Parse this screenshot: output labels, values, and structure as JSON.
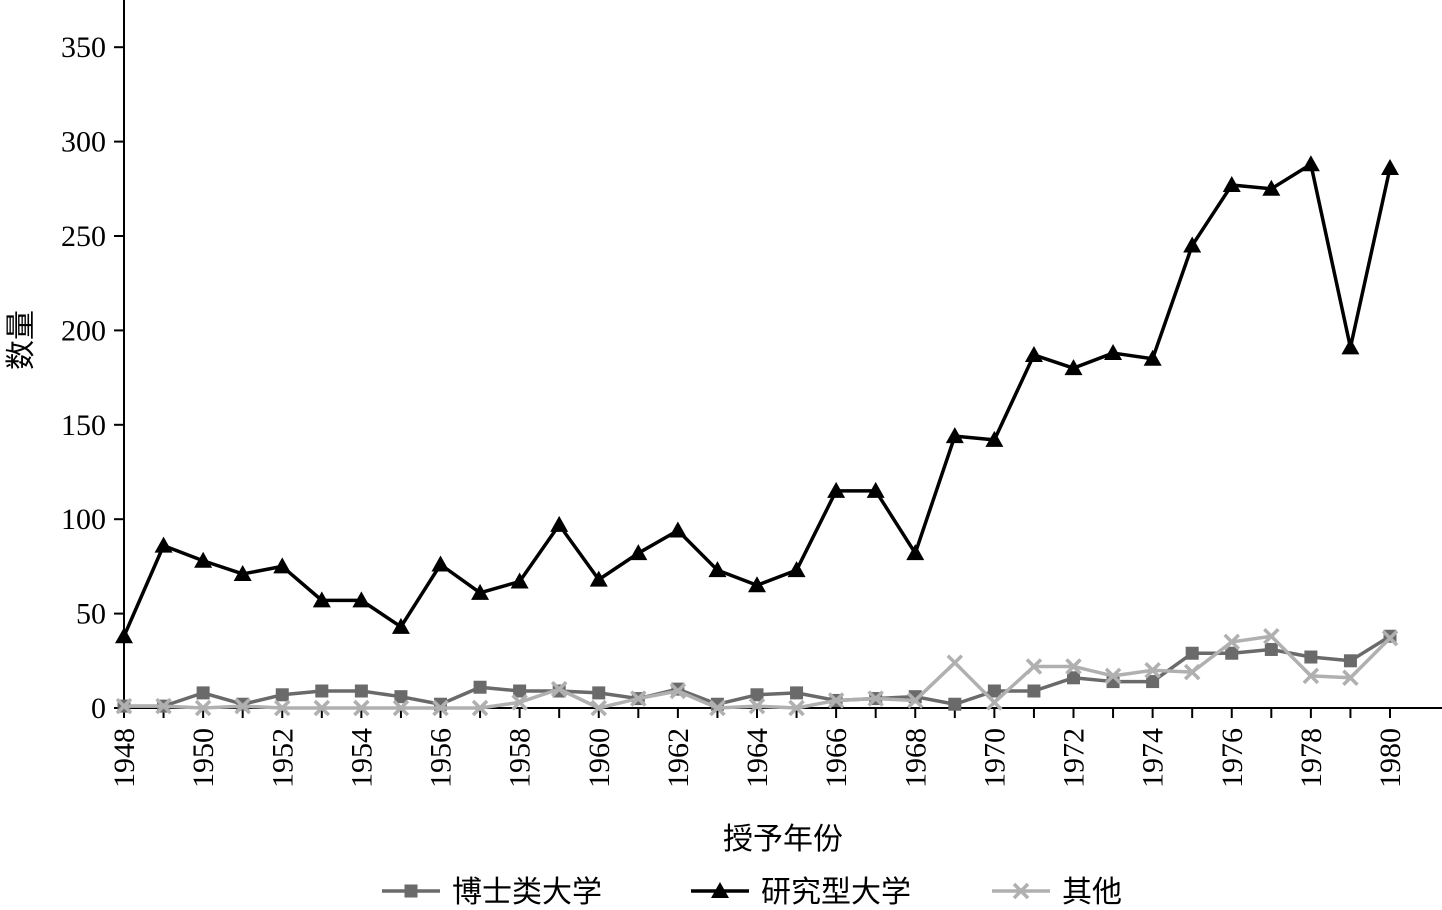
{
  "chart_data": {
    "type": "line",
    "title": "",
    "xlabel": "授予年份",
    "ylabel": "数量",
    "ylim": [
      0,
      375
    ],
    "yticks": [
      0,
      50,
      100,
      150,
      200,
      250,
      300,
      350
    ],
    "xtick_labels": [
      "1948",
      "1950",
      "1952",
      "1954",
      "1956",
      "1958",
      "1960",
      "1962",
      "1964",
      "1966",
      "1968",
      "1970",
      "1972",
      "1974",
      "1976",
      "1978",
      "1980"
    ],
    "x": [
      1948,
      1949,
      1950,
      1951,
      1952,
      1953,
      1954,
      1955,
      1956,
      1957,
      1958,
      1959,
      1960,
      1961,
      1962,
      1963,
      1964,
      1965,
      1966,
      1967,
      1968,
      1969,
      1970,
      1971,
      1972,
      1973,
      1974,
      1975,
      1976,
      1977,
      1978,
      1979,
      1980
    ],
    "grid": false,
    "legend_position": "bottom",
    "series": [
      {
        "name": "博士类大学",
        "color": "#6a6a6a",
        "marker": "square",
        "values": [
          1,
          1,
          8,
          2,
          7,
          9,
          9,
          6,
          2,
          11,
          9,
          9,
          8,
          5,
          10,
          2,
          7,
          8,
          4,
          5,
          6,
          2,
          9,
          9,
          16,
          14,
          14,
          29,
          29,
          31,
          27,
          25,
          38
        ]
      },
      {
        "name": "研究型大学",
        "color": "#000000",
        "marker": "triangle",
        "values": [
          38,
          86,
          78,
          71,
          75,
          57,
          57,
          43,
          76,
          61,
          67,
          97,
          68,
          82,
          94,
          73,
          65,
          73,
          115,
          115,
          82,
          144,
          142,
          187,
          180,
          188,
          185,
          245,
          277,
          275,
          288,
          191,
          286
        ]
      },
      {
        "name": "其他",
        "color": "#b0b0b0",
        "marker": "x",
        "values": [
          1,
          1,
          0,
          1,
          0,
          0,
          0,
          0,
          0,
          0,
          3,
          10,
          0,
          5,
          9,
          0,
          1,
          0,
          4,
          5,
          4,
          24,
          3,
          22,
          22,
          17,
          20,
          19,
          35,
          38,
          17,
          16,
          37
        ]
      }
    ]
  }
}
